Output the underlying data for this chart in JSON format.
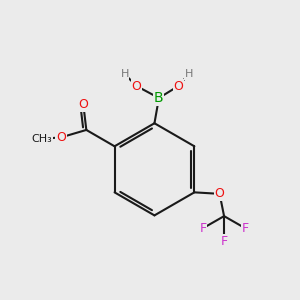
{
  "bg_color": "#ebebeb",
  "bond_color": "#1a1a1a",
  "bond_width": 1.5,
  "atom_colors": {
    "B": "#009900",
    "O": "#ee1111",
    "F": "#cc33cc",
    "C": "#1a1a1a",
    "H": "#777777"
  },
  "figsize": [
    3.0,
    3.0
  ],
  "dpi": 100
}
